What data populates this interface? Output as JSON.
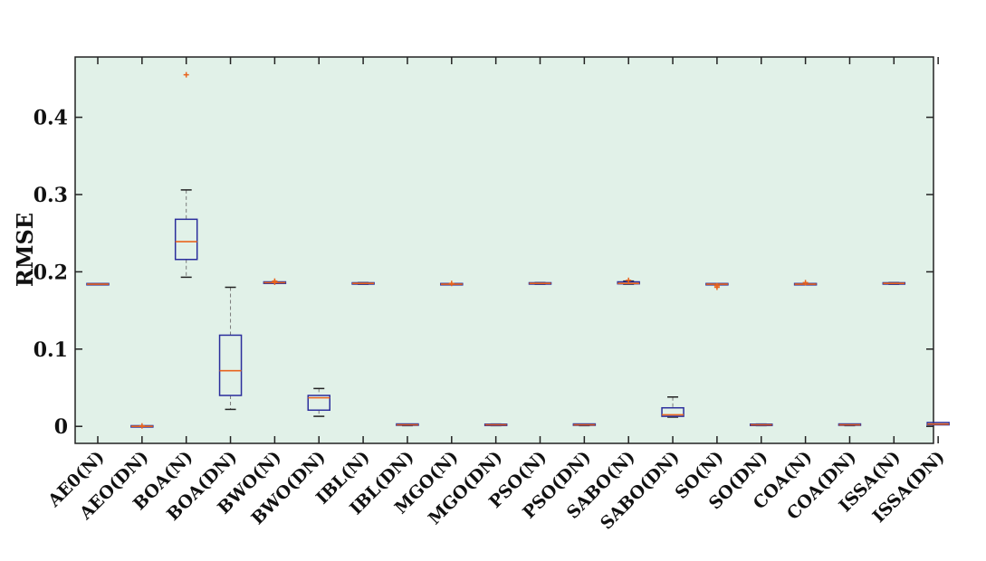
{
  "chart_data": {
    "type": "boxplot",
    "title": "",
    "xlabel": "",
    "ylabel": "RMSE",
    "ylim": [
      -0.022,
      0.478
    ],
    "yticks": [
      0,
      0.1,
      0.2,
      0.3,
      0.4
    ],
    "ytick_labels": [
      "0",
      "0.1",
      "0.2",
      "0.3",
      "0.4"
    ],
    "background_color": "#e1f1e8",
    "box_color": "#2b2e9c",
    "median_color": "#e8641e",
    "whisker_color": "#7a7a7a",
    "outlier_color": "#e8641e",
    "categories": [
      "AE0(N)",
      "AEO(DN)",
      "BOA(N)",
      "BOA(DN)",
      "BWO(N)",
      "BWO(DN)",
      "IBL(N)",
      "IBL(DN)",
      "MGO(N)",
      "MGO(DN)",
      "PSO(N)",
      "PSO(DN)",
      "SABO(N)",
      "SABO(DN)",
      "SO(N)",
      "SO(DN)",
      "COA(N)",
      "COA(DN)",
      "ISSA(N)",
      "ISSA(DN)"
    ],
    "boxes": [
      {
        "min": 0.184,
        "q1": 0.184,
        "median": 0.184,
        "q3": 0.184,
        "max": 0.184,
        "outliers": []
      },
      {
        "min": 0.0,
        "q1": 0.0,
        "median": 0.0,
        "q3": 0.0,
        "max": 0.0,
        "outliers": [
          0.0006
        ]
      },
      {
        "min": 0.193,
        "q1": 0.216,
        "median": 0.239,
        "q3": 0.268,
        "max": 0.306,
        "outliers": [
          0.455
        ]
      },
      {
        "min": 0.022,
        "q1": 0.04,
        "median": 0.072,
        "q3": 0.118,
        "max": 0.18,
        "outliers": []
      },
      {
        "min": 0.185,
        "q1": 0.185,
        "median": 0.186,
        "q3": 0.187,
        "max": 0.187,
        "outliers": [
          0.188,
          0.1865
        ]
      },
      {
        "min": 0.013,
        "q1": 0.021,
        "median": 0.037,
        "q3": 0.04,
        "max": 0.049,
        "outliers": []
      },
      {
        "min": 0.184,
        "q1": 0.1845,
        "median": 0.185,
        "q3": 0.1855,
        "max": 0.186,
        "outliers": []
      },
      {
        "min": 0.001,
        "q1": 0.0015,
        "median": 0.002,
        "q3": 0.003,
        "max": 0.003,
        "outliers": []
      },
      {
        "min": 0.184,
        "q1": 0.184,
        "median": 0.184,
        "q3": 0.184,
        "max": 0.184,
        "outliers": [
          0.185
        ]
      },
      {
        "min": 0.001,
        "q1": 0.0015,
        "median": 0.002,
        "q3": 0.0025,
        "max": 0.003,
        "outliers": []
      },
      {
        "min": 0.184,
        "q1": 0.1845,
        "median": 0.185,
        "q3": 0.1855,
        "max": 0.186,
        "outliers": []
      },
      {
        "min": 0.001,
        "q1": 0.0015,
        "median": 0.002,
        "q3": 0.003,
        "max": 0.003,
        "outliers": []
      },
      {
        "min": 0.184,
        "q1": 0.1845,
        "median": 0.185,
        "q3": 0.187,
        "max": 0.188,
        "outliers": [
          0.189
        ]
      },
      {
        "min": 0.012,
        "q1": 0.013,
        "median": 0.015,
        "q3": 0.024,
        "max": 0.038,
        "outliers": []
      },
      {
        "min": 0.184,
        "q1": 0.184,
        "median": 0.184,
        "q3": 0.184,
        "max": 0.184,
        "outliers": [
          0.182,
          0.18
        ]
      },
      {
        "min": 0.001,
        "q1": 0.0015,
        "median": 0.002,
        "q3": 0.0025,
        "max": 0.003,
        "outliers": []
      },
      {
        "min": 0.184,
        "q1": 0.184,
        "median": 0.184,
        "q3": 0.184,
        "max": 0.184,
        "outliers": [
          0.186
        ]
      },
      {
        "min": 0.001,
        "q1": 0.0015,
        "median": 0.002,
        "q3": 0.003,
        "max": 0.003,
        "outliers": []
      },
      {
        "min": 0.184,
        "q1": 0.1845,
        "median": 0.185,
        "q3": 0.1855,
        "max": 0.186,
        "outliers": []
      },
      {
        "min": 0.002,
        "q1": 0.002,
        "median": 0.003,
        "q3": 0.005,
        "max": 0.005,
        "outliers": []
      }
    ]
  }
}
